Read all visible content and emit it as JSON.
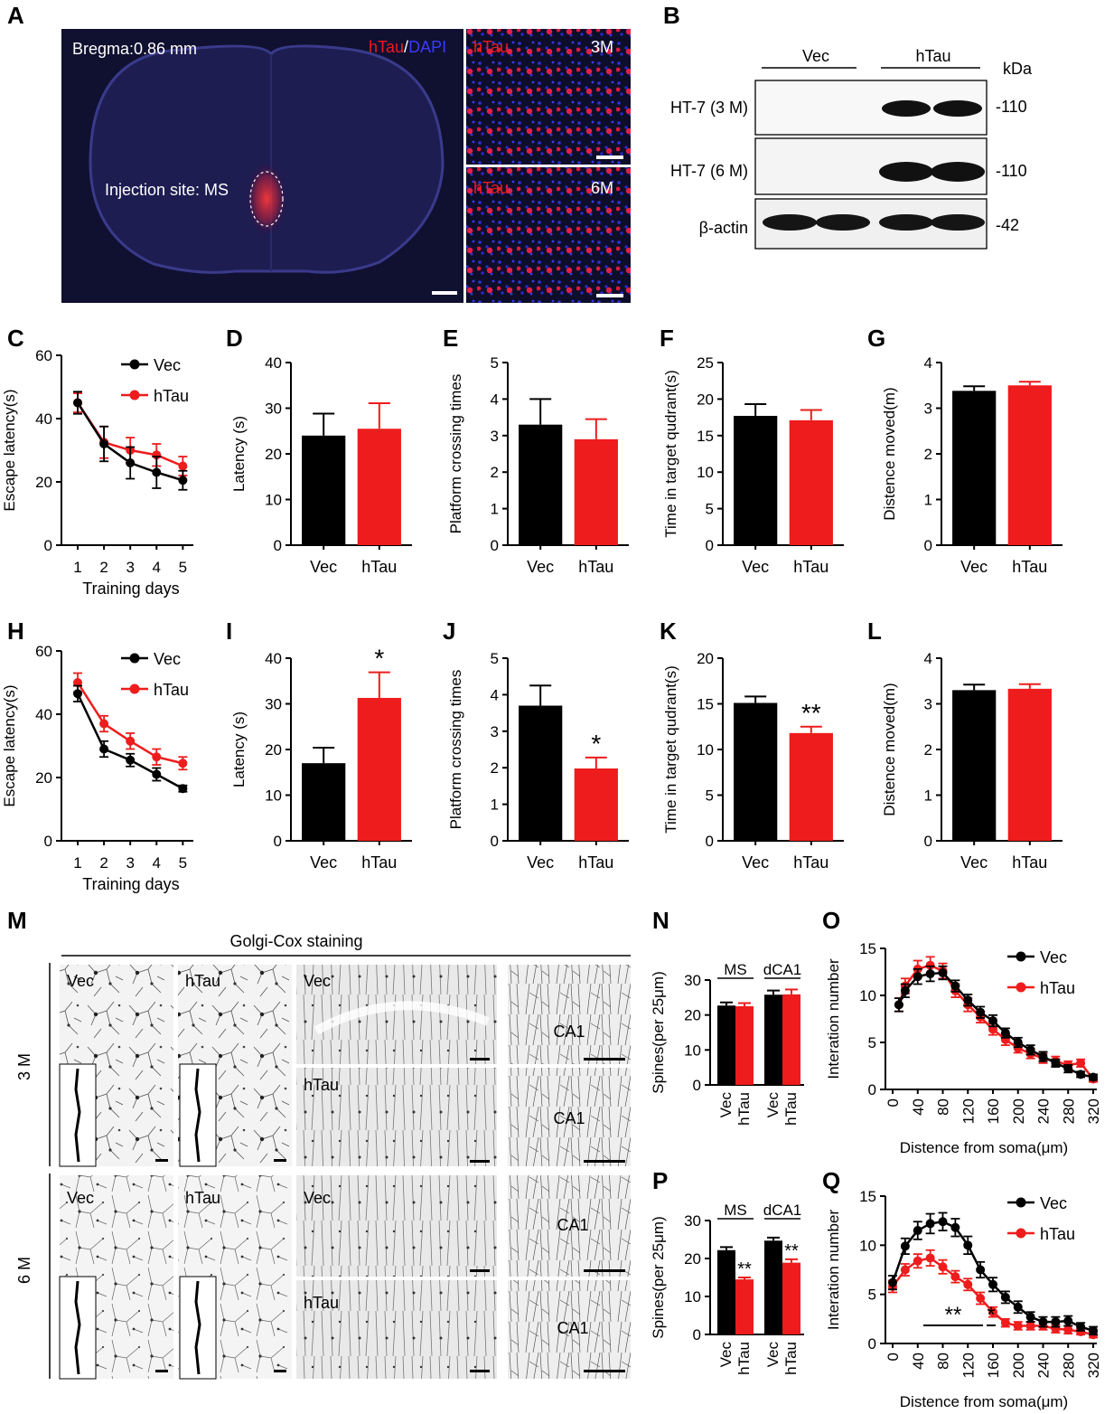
{
  "colors": {
    "vec": "#000000",
    "htau": "#ee1c1c",
    "dapi": "#2a2ad6",
    "micro_bg": "#141430"
  },
  "panel_letters": [
    "A",
    "B",
    "C",
    "D",
    "E",
    "F",
    "G",
    "H",
    "I",
    "J",
    "K",
    "L",
    "M",
    "N",
    "O",
    "P",
    "Q"
  ],
  "panel_a": {
    "bregma": "Bregma:0.86 mm",
    "stain_htau": "hTau",
    "stain_sep": "/",
    "stain_dapi": "DAPI",
    "injection": "Injection site: MS",
    "inset_top_label": "hTau",
    "inset_top_age": "3M",
    "inset_bottom_label": "hTau",
    "inset_bottom_age": "6M"
  },
  "panel_b": {
    "groups": [
      "Vec",
      "hTau"
    ],
    "kda": "kDa",
    "rows": [
      {
        "label": "HT-7 (3 M)",
        "mw": "-110"
      },
      {
        "label": "HT-7 (6 M)",
        "mw": "-110"
      },
      {
        "label": "β-actin",
        "mw": "-42"
      }
    ]
  },
  "panel_m": {
    "title": "Golgi-Cox staining",
    "row_3m": "3 M",
    "row_6m": "6 M",
    "vec": "Vec",
    "htau": "hTau",
    "ca1": "CA1"
  },
  "chart_data": [
    {
      "id": "C",
      "type": "line",
      "xlabel": "Training days",
      "ylabel": "Escape latency(s)",
      "ylim": [
        0,
        60
      ],
      "yticks": [
        0,
        20,
        40,
        60
      ],
      "x": [
        1,
        2,
        3,
        4,
        5
      ],
      "series": [
        {
          "name": "Vec",
          "values": [
            45,
            32,
            26,
            23,
            20.5
          ],
          "err": [
            3.5,
            5.5,
            5,
            5,
            3
          ]
        },
        {
          "name": "hTau",
          "values": [
            45,
            32.5,
            30,
            28.5,
            25
          ],
          "err": [
            3,
            5,
            4,
            3.5,
            3
          ]
        }
      ]
    },
    {
      "id": "D",
      "type": "bar",
      "categories": [
        "Vec",
        "hTau"
      ],
      "values": [
        24,
        25.5
      ],
      "err": [
        4.8,
        5.6
      ],
      "ylabel": "Latency (s)",
      "ylim": [
        0,
        40
      ],
      "yticks": [
        0,
        10,
        20,
        30,
        40
      ]
    },
    {
      "id": "E",
      "type": "bar",
      "categories": [
        "Vec",
        "hTau"
      ],
      "values": [
        3.3,
        2.9
      ],
      "err": [
        0.7,
        0.55
      ],
      "ylabel": "Platform crossing times",
      "ylim": [
        0,
        5
      ],
      "yticks": [
        0,
        1,
        2,
        3,
        4,
        5
      ]
    },
    {
      "id": "F",
      "type": "bar",
      "categories": [
        "Vec",
        "hTau"
      ],
      "values": [
        17.7,
        17.1
      ],
      "err": [
        1.6,
        1.4
      ],
      "ylabel": "Time in target qudrant(s)",
      "ylim": [
        0,
        25
      ],
      "yticks": [
        0,
        5,
        10,
        15,
        20,
        25
      ]
    },
    {
      "id": "G",
      "type": "bar",
      "categories": [
        "Vec",
        "hTau"
      ],
      "values": [
        3.38,
        3.5
      ],
      "err": [
        0.1,
        0.08
      ],
      "ylabel": "Distence moved(m)",
      "ylim": [
        0,
        4
      ],
      "yticks": [
        0,
        1,
        2,
        3,
        4
      ]
    },
    {
      "id": "H",
      "type": "line",
      "xlabel": "Training days",
      "ylabel": "Escape latency(s)",
      "ylim": [
        0,
        60
      ],
      "yticks": [
        0,
        20,
        40,
        60
      ],
      "x": [
        1,
        2,
        3,
        4,
        5
      ],
      "series": [
        {
          "name": "Vec",
          "values": [
            46.5,
            29,
            25.5,
            21,
            16.5
          ],
          "err": [
            2.5,
            2.5,
            2,
            2,
            1
          ]
        },
        {
          "name": "hTau",
          "values": [
            50,
            37,
            31.5,
            26.5,
            24.5
          ],
          "err": [
            3,
            2.5,
            2.5,
            2.5,
            2
          ]
        }
      ]
    },
    {
      "id": "I",
      "type": "bar",
      "categories": [
        "Vec",
        "hTau"
      ],
      "values": [
        17,
        31.3
      ],
      "err": [
        3.4,
        5.6
      ],
      "sig": [
        "",
        "*"
      ],
      "ylabel": "Latency (s)",
      "ylim": [
        0,
        40
      ],
      "yticks": [
        0,
        10,
        20,
        30,
        40
      ]
    },
    {
      "id": "J",
      "type": "bar",
      "categories": [
        "Vec",
        "hTau"
      ],
      "values": [
        3.7,
        1.98
      ],
      "err": [
        0.55,
        0.3
      ],
      "sig": [
        "",
        "*"
      ],
      "ylabel": "Platform crossing times",
      "ylim": [
        0,
        5
      ],
      "yticks": [
        0,
        1,
        2,
        3,
        4,
        5
      ]
    },
    {
      "id": "K",
      "type": "bar",
      "categories": [
        "Vec",
        "hTau"
      ],
      "values": [
        15.1,
        11.8
      ],
      "err": [
        0.7,
        0.7
      ],
      "sig": [
        "",
        "**"
      ],
      "ylabel": "Time in target qudrant(s)",
      "ylim": [
        0,
        20
      ],
      "yticks": [
        0,
        5,
        10,
        15,
        20
      ]
    },
    {
      "id": "L",
      "type": "bar",
      "categories": [
        "Vec",
        "hTau"
      ],
      "values": [
        3.3,
        3.33
      ],
      "err": [
        0.12,
        0.1
      ],
      "ylabel": "Distence moved(m)",
      "ylim": [
        0,
        4
      ],
      "yticks": [
        0,
        1,
        2,
        3,
        4
      ]
    },
    {
      "id": "N",
      "type": "bar",
      "groups": [
        "MS",
        "dCA1"
      ],
      "categories": [
        "Vec",
        "hTau",
        "Vec",
        "hTau"
      ],
      "values": [
        22.7,
        22.5,
        25.8,
        25.9
      ],
      "err": [
        0.9,
        0.9,
        1.2,
        1.4
      ],
      "ylabel": "Spines(per 25μm)",
      "ylim": [
        0,
        30
      ],
      "yticks": [
        0,
        10,
        20,
        30
      ]
    },
    {
      "id": "O",
      "type": "line",
      "xlabel": "Distence from soma(μm)",
      "ylabel": "Interation number",
      "ylim": [
        0,
        15
      ],
      "yticks": [
        0,
        5,
        10,
        15
      ],
      "x": [
        10,
        20,
        40,
        60,
        80,
        100,
        120,
        140,
        160,
        180,
        200,
        220,
        240,
        260,
        280,
        300,
        320
      ],
      "xticks": [
        0,
        40,
        80,
        120,
        160,
        200,
        240,
        280,
        320
      ],
      "series": [
        {
          "name": "Vec",
          "values": [
            9,
            10.5,
            12,
            12.3,
            12.4,
            11,
            9.5,
            8.2,
            7.3,
            6,
            5,
            4.2,
            3.5,
            2.8,
            2.2,
            1.6,
            1.3
          ],
          "err": [
            0.7,
            0.7,
            0.8,
            0.8,
            0.7,
            0.6,
            0.6,
            0.6,
            0.6,
            0.5,
            0.5,
            0.5,
            0.5,
            0.4,
            0.4,
            0.3,
            0.3
          ]
        },
        {
          "name": "hTau",
          "values": [
            9,
            11,
            12.8,
            13.2,
            12.6,
            10.5,
            9,
            7.7,
            6.4,
            5.3,
            4.4,
            3.8,
            3.3,
            3,
            2.6,
            2.8,
            1.1
          ],
          "err": [
            0.7,
            0.8,
            0.9,
            0.9,
            0.8,
            0.7,
            0.7,
            0.6,
            0.6,
            0.6,
            0.5,
            0.5,
            0.5,
            0.5,
            0.4,
            0.4,
            0.3
          ]
        }
      ]
    },
    {
      "id": "P",
      "type": "bar",
      "groups": [
        "MS",
        "dCA1"
      ],
      "categories": [
        "Vec",
        "hTau",
        "Vec",
        "hTau"
      ],
      "values": [
        22.2,
        14.5,
        24.7,
        18.9
      ],
      "err": [
        0.8,
        0.5,
        0.8,
        0.9
      ],
      "sig": [
        "",
        "**",
        "",
        "**"
      ],
      "ylabel": "Spines(per 25μm)",
      "ylim": [
        0,
        30
      ],
      "yticks": [
        0,
        10,
        20,
        30
      ]
    },
    {
      "id": "Q",
      "type": "line",
      "xlabel": "Distence from soma(μm)",
      "ylabel": "Interation number",
      "ylim": [
        0,
        15
      ],
      "yticks": [
        0,
        5,
        10,
        15
      ],
      "x": [
        0,
        20,
        40,
        60,
        80,
        100,
        120,
        140,
        160,
        180,
        200,
        220,
        240,
        260,
        280,
        300,
        320
      ],
      "xticks": [
        0,
        40,
        80,
        120,
        160,
        200,
        240,
        280,
        320
      ],
      "series": [
        {
          "name": "Vec",
          "values": [
            6.2,
            9.9,
            11.5,
            12.2,
            12.4,
            11.8,
            10,
            7.5,
            6,
            4.7,
            3.7,
            2.7,
            2.2,
            2.2,
            2.3,
            1.7,
            1.3
          ],
          "err": [
            0.7,
            0.8,
            0.9,
            1,
            0.9,
            0.9,
            0.9,
            0.8,
            0.7,
            0.6,
            0.6,
            0.5,
            0.5,
            0.5,
            0.5,
            0.4,
            0.4
          ]
        },
        {
          "name": "hTau",
          "values": [
            5.8,
            7.5,
            8.4,
            8.7,
            7.8,
            6.8,
            6,
            4.6,
            3.2,
            2.1,
            1.8,
            1.8,
            1.8,
            1.5,
            1.4,
            1.2,
            0.9
          ],
          "err": [
            0.6,
            0.6,
            0.7,
            0.8,
            0.7,
            0.6,
            0.6,
            0.6,
            0.5,
            0.4,
            0.4,
            0.4,
            0.4,
            0.4,
            0.4,
            0.3,
            0.3
          ]
        }
      ],
      "annotations": [
        "**",
        "*"
      ]
    }
  ]
}
